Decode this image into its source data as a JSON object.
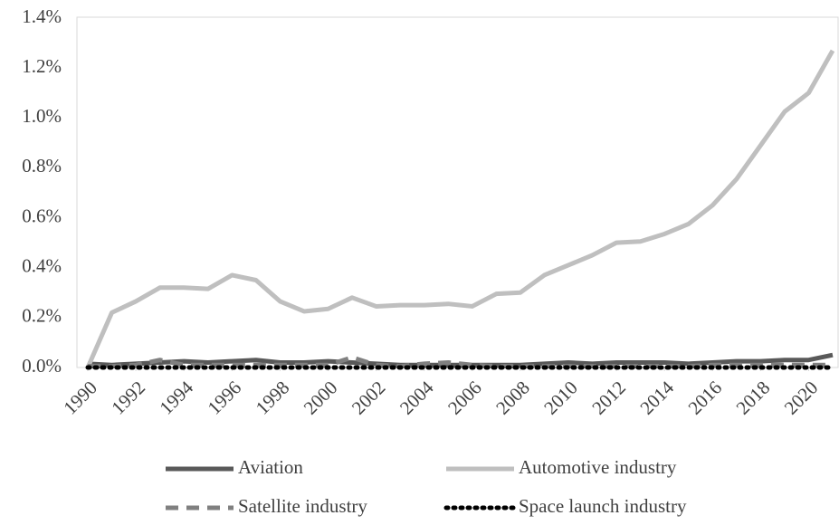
{
  "chart_data": {
    "type": "line",
    "x": [
      1990,
      1991,
      1992,
      1993,
      1994,
      1995,
      1996,
      1997,
      1998,
      1999,
      2000,
      2001,
      2002,
      2003,
      2004,
      2005,
      2006,
      2007,
      2008,
      2009,
      2010,
      2011,
      2012,
      2013,
      2014,
      2015,
      2016,
      2017,
      2018,
      2019,
      2020,
      2021
    ],
    "xlim": [
      1990,
      2021
    ],
    "xticks": [
      1990,
      1992,
      1994,
      1996,
      1998,
      2000,
      2002,
      2004,
      2006,
      2008,
      2010,
      2012,
      2014,
      2016,
      2018,
      2020
    ],
    "ylim": [
      0,
      1.4
    ],
    "yticks": [
      {
        "value": 0,
        "label": "0.0%"
      },
      {
        "value": 0.2,
        "label": "0.2%"
      },
      {
        "value": 0.4,
        "label": "0.4%"
      },
      {
        "value": 0.6,
        "label": "0.6%"
      },
      {
        "value": 0.8,
        "label": "0.8%"
      },
      {
        "value": 1.0,
        "label": "1.0%"
      },
      {
        "value": 1.2,
        "label": "1.2%"
      },
      {
        "value": 1.4,
        "label": "1.4%"
      }
    ],
    "series": [
      {
        "name": "Aviation",
        "color": "#595959",
        "style": "solid",
        "values": [
          0.015,
          0.01,
          0.015,
          0.02,
          0.025,
          0.02,
          0.025,
          0.03,
          0.02,
          0.02,
          0.025,
          0.02,
          0.015,
          0.01,
          0.01,
          0.01,
          0.01,
          0.01,
          0.01,
          0.015,
          0.02,
          0.015,
          0.02,
          0.02,
          0.02,
          0.015,
          0.02,
          0.025,
          0.025,
          0.03,
          0.03,
          0.05
        ]
      },
      {
        "name": "Automotive industry",
        "color": "#bfbfbf",
        "style": "solid",
        "values": [
          0.0,
          0.22,
          0.265,
          0.32,
          0.32,
          0.315,
          0.37,
          0.35,
          0.265,
          0.225,
          0.235,
          0.28,
          0.245,
          0.25,
          0.25,
          0.255,
          0.245,
          0.295,
          0.3,
          0.37,
          0.41,
          0.45,
          0.5,
          0.505,
          0.535,
          0.575,
          0.65,
          0.755,
          0.89,
          1.025,
          1.1,
          1.27
        ]
      },
      {
        "name": "Satellite industry",
        "color": "#808080",
        "style": "dashed",
        "values": [
          0.005,
          0.005,
          0.01,
          0.03,
          0.01,
          0.01,
          0.01,
          0.01,
          0.01,
          0.01,
          0.01,
          0.04,
          0.01,
          0.005,
          0.015,
          0.02,
          0.01,
          0.005,
          0.005,
          0.005,
          0.005,
          0.005,
          0.005,
          0.005,
          0.005,
          0.005,
          0.01,
          0.01,
          0.01,
          0.01,
          0.01,
          0.01
        ]
      },
      {
        "name": "Space launch industry",
        "color": "#000000",
        "style": "dotted",
        "values": [
          0,
          0,
          0,
          0,
          0,
          0,
          0,
          0,
          0,
          0,
          0,
          0,
          0,
          0,
          0,
          0,
          0,
          0,
          0,
          0,
          0,
          0,
          0,
          0,
          0,
          0,
          0,
          0,
          0,
          0,
          0,
          0
        ]
      }
    ]
  }
}
